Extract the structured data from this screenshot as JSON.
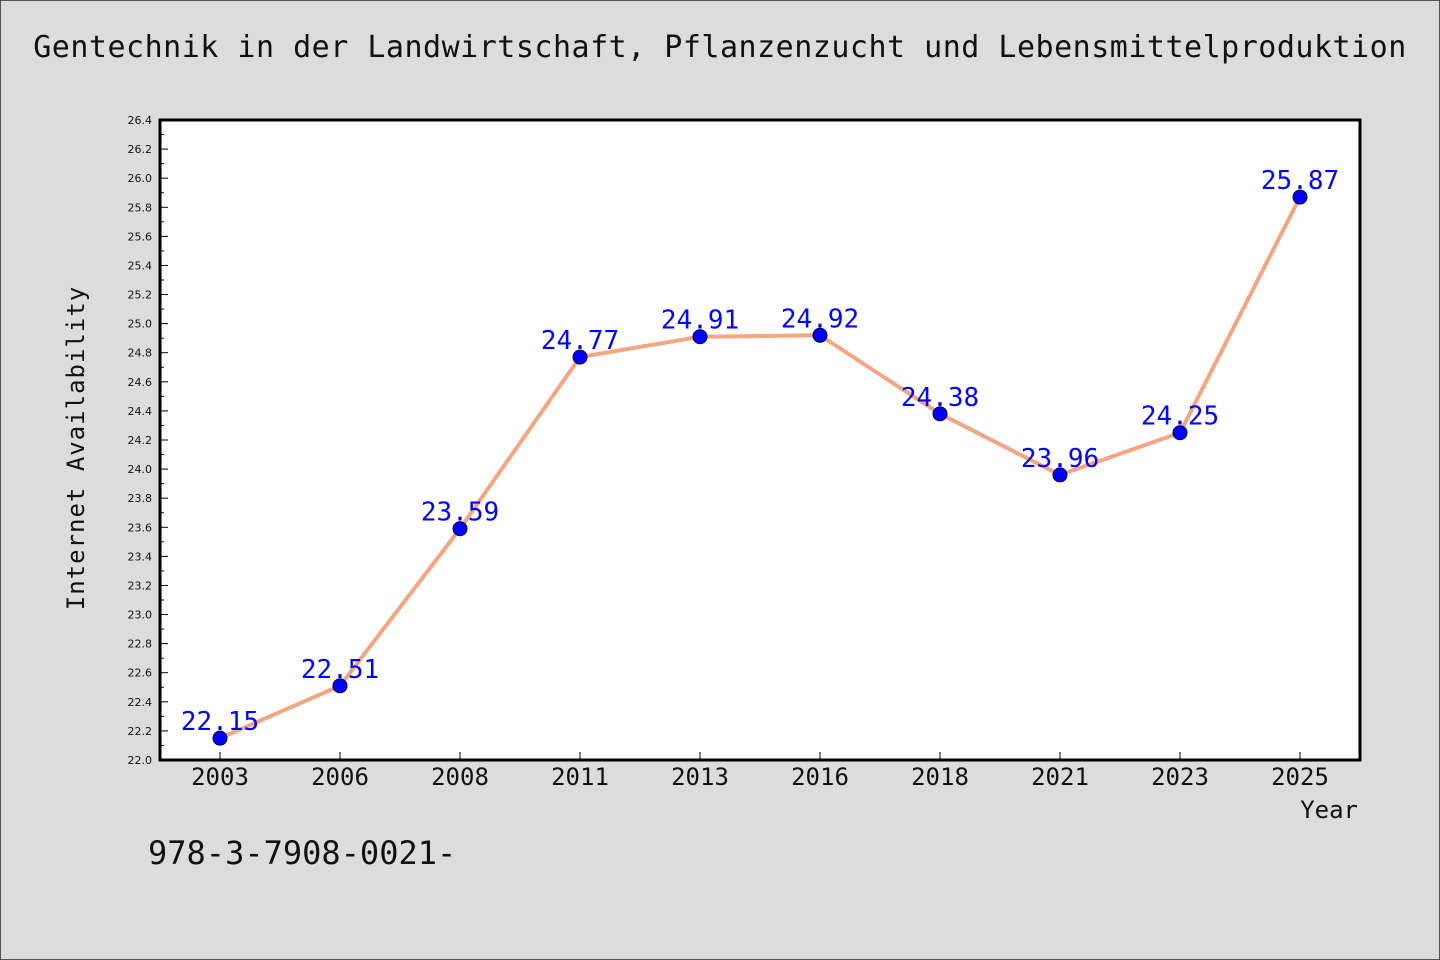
{
  "colors": {
    "background": "#dcdcdc",
    "plot_area": "#ffffff",
    "line": "#f4a582",
    "marker": "#0000ff",
    "data_label": "#0000ff"
  },
  "footer": {
    "code": "978-3-7908-0021-"
  },
  "chart_data": {
    "type": "line",
    "title": "Gentechnik in der Landwirtschaft, Pflanzenzucht und Lebensmittelproduktion",
    "xlabel": "Year",
    "ylabel": "Internet Availability",
    "categories": [
      "2003",
      "2006",
      "2008",
      "2011",
      "2013",
      "2016",
      "2018",
      "2021",
      "2023",
      "2025"
    ],
    "series": [
      {
        "values": [
          22.15,
          22.51,
          23.59,
          24.77,
          24.91,
          24.92,
          24.38,
          23.96,
          24.25,
          25.87
        ],
        "labels": [
          "22.15",
          "22.51",
          "23.59",
          "24.77",
          "24.91",
          "24.92",
          "24.38",
          "23.96",
          "24.25",
          "25.87"
        ]
      }
    ],
    "ylim": [
      22.0,
      26.4
    ],
    "yticks": [
      "22.0",
      "22.2",
      "22.4",
      "22.6",
      "22.8",
      "23.0",
      "23.2",
      "23.4",
      "23.6",
      "23.8",
      "24.0",
      "24.2",
      "24.4",
      "24.6",
      "24.8",
      "25.0",
      "25.2",
      "25.4",
      "25.6",
      "25.8",
      "26.0",
      "26.2",
      "26.4"
    ],
    "grid": false,
    "legend": "none"
  }
}
